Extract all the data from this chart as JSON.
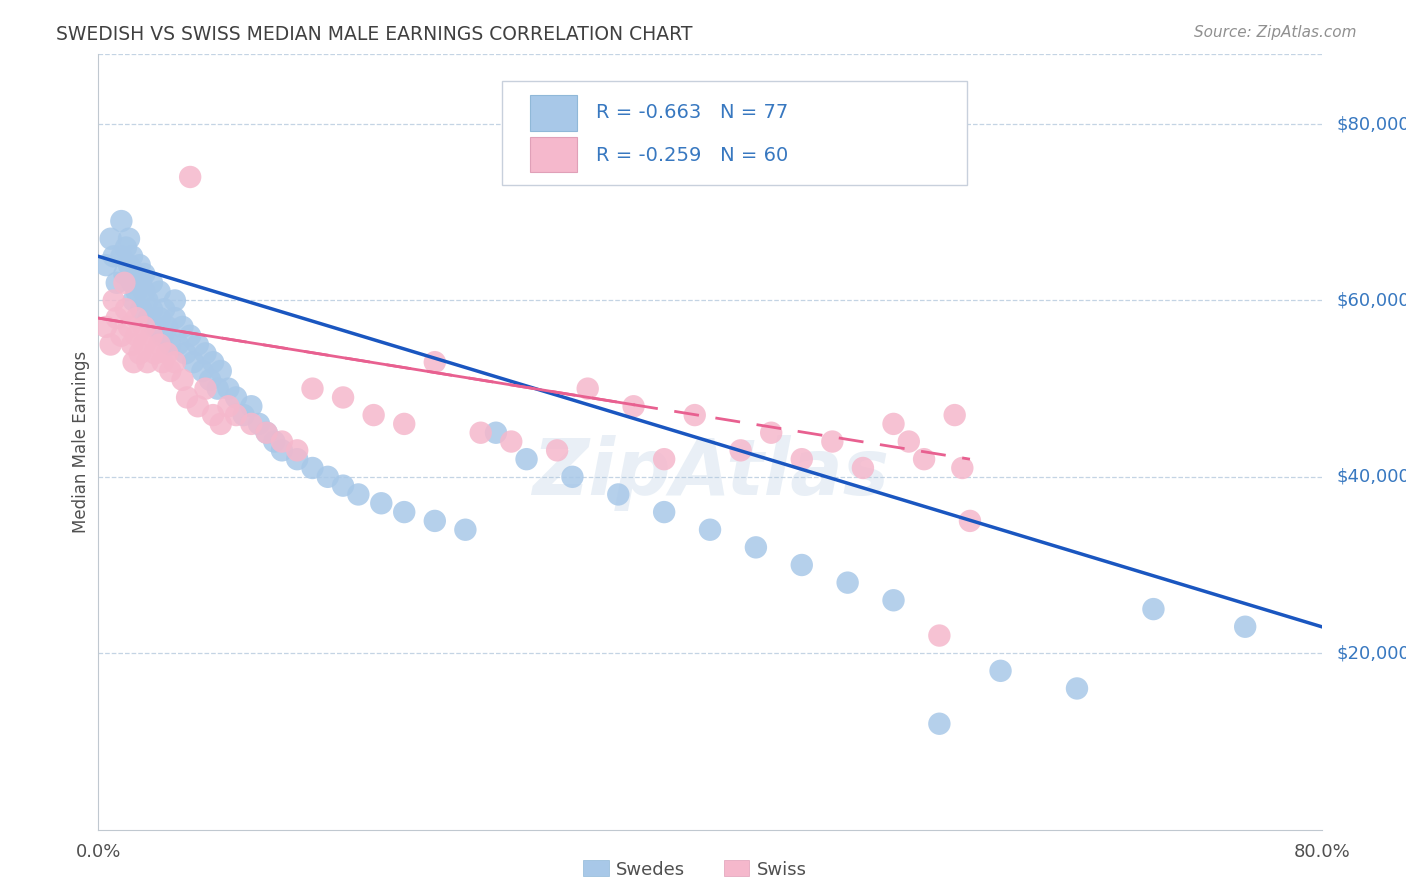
{
  "title": "SWEDISH VS SWISS MEDIAN MALE EARNINGS CORRELATION CHART",
  "source": "Source: ZipAtlas.com",
  "ylabel": "Median Male Earnings",
  "yaxis_labels": [
    "$20,000",
    "$40,000",
    "$60,000",
    "$80,000"
  ],
  "yaxis_values": [
    20000,
    40000,
    60000,
    80000
  ],
  "xlim": [
    0.0,
    0.8
  ],
  "ylim": [
    0,
    88000
  ],
  "swedes_R": "-0.663",
  "swedes_N": "77",
  "swiss_R": "-0.259",
  "swiss_N": "60",
  "swedes_color": "#a8c8e8",
  "swiss_color": "#f5b8cc",
  "swedes_line_color": "#1a56c0",
  "swiss_line_color": "#e86090",
  "background_color": "#ffffff",
  "grid_color": "#c4d4e4",
  "title_color": "#404040",
  "source_color": "#909090",
  "yaxis_label_color": "#3878c0",
  "watermark": "ZipAtlas",
  "legend_border_color": "#c8d0dc",
  "bottom_label_color": "#505050",
  "swedes_line_x0": 0.0,
  "swedes_line_y0": 65000,
  "swedes_line_x1": 0.8,
  "swedes_line_y1": 23000,
  "swiss_line_x0": 0.0,
  "swiss_line_y0": 58000,
  "swiss_line_x1": 0.57,
  "swiss_line_y1": 42000,
  "swedes_x": [
    0.005,
    0.008,
    0.01,
    0.012,
    0.015,
    0.015,
    0.017,
    0.018,
    0.02,
    0.02,
    0.022,
    0.022,
    0.023,
    0.025,
    0.025,
    0.027,
    0.028,
    0.028,
    0.03,
    0.03,
    0.032,
    0.033,
    0.035,
    0.035,
    0.037,
    0.04,
    0.04,
    0.042,
    0.043,
    0.045,
    0.047,
    0.05,
    0.05,
    0.052,
    0.055,
    0.057,
    0.06,
    0.062,
    0.065,
    0.068,
    0.07,
    0.073,
    0.075,
    0.078,
    0.08,
    0.085,
    0.09,
    0.095,
    0.1,
    0.105,
    0.11,
    0.115,
    0.12,
    0.13,
    0.14,
    0.15,
    0.16,
    0.17,
    0.185,
    0.2,
    0.22,
    0.24,
    0.26,
    0.28,
    0.31,
    0.34,
    0.37,
    0.4,
    0.43,
    0.46,
    0.49,
    0.52,
    0.55,
    0.59,
    0.64,
    0.69,
    0.75
  ],
  "swedes_y": [
    64000,
    67000,
    65000,
    62000,
    65000,
    69000,
    63000,
    66000,
    64000,
    67000,
    65000,
    62000,
    60000,
    63000,
    61000,
    64000,
    62000,
    59000,
    61000,
    63000,
    60000,
    58000,
    62000,
    59000,
    57000,
    61000,
    58000,
    56000,
    59000,
    57000,
    55000,
    58000,
    60000,
    55000,
    57000,
    54000,
    56000,
    53000,
    55000,
    52000,
    54000,
    51000,
    53000,
    50000,
    52000,
    50000,
    49000,
    47000,
    48000,
    46000,
    45000,
    44000,
    43000,
    42000,
    41000,
    40000,
    39000,
    38000,
    37000,
    36000,
    35000,
    34000,
    45000,
    42000,
    40000,
    38000,
    36000,
    34000,
    32000,
    30000,
    28000,
    26000,
    12000,
    18000,
    16000,
    25000,
    23000
  ],
  "swiss_x": [
    0.005,
    0.008,
    0.01,
    0.012,
    0.015,
    0.017,
    0.018,
    0.02,
    0.022,
    0.023,
    0.025,
    0.025,
    0.027,
    0.03,
    0.03,
    0.032,
    0.035,
    0.037,
    0.04,
    0.042,
    0.045,
    0.047,
    0.05,
    0.055,
    0.058,
    0.06,
    0.065,
    0.07,
    0.075,
    0.08,
    0.085,
    0.09,
    0.1,
    0.11,
    0.12,
    0.13,
    0.14,
    0.16,
    0.18,
    0.2,
    0.22,
    0.25,
    0.27,
    0.3,
    0.32,
    0.35,
    0.37,
    0.39,
    0.42,
    0.44,
    0.46,
    0.48,
    0.5,
    0.52,
    0.53,
    0.54,
    0.55,
    0.56,
    0.565,
    0.57
  ],
  "swiss_y": [
    57000,
    55000,
    60000,
    58000,
    56000,
    62000,
    59000,
    57000,
    55000,
    53000,
    58000,
    56000,
    54000,
    57000,
    55000,
    53000,
    56000,
    54000,
    55000,
    53000,
    54000,
    52000,
    53000,
    51000,
    49000,
    74000,
    48000,
    50000,
    47000,
    46000,
    48000,
    47000,
    46000,
    45000,
    44000,
    43000,
    50000,
    49000,
    47000,
    46000,
    53000,
    45000,
    44000,
    43000,
    50000,
    48000,
    42000,
    47000,
    43000,
    45000,
    42000,
    44000,
    41000,
    46000,
    44000,
    42000,
    22000,
    47000,
    41000,
    35000
  ]
}
